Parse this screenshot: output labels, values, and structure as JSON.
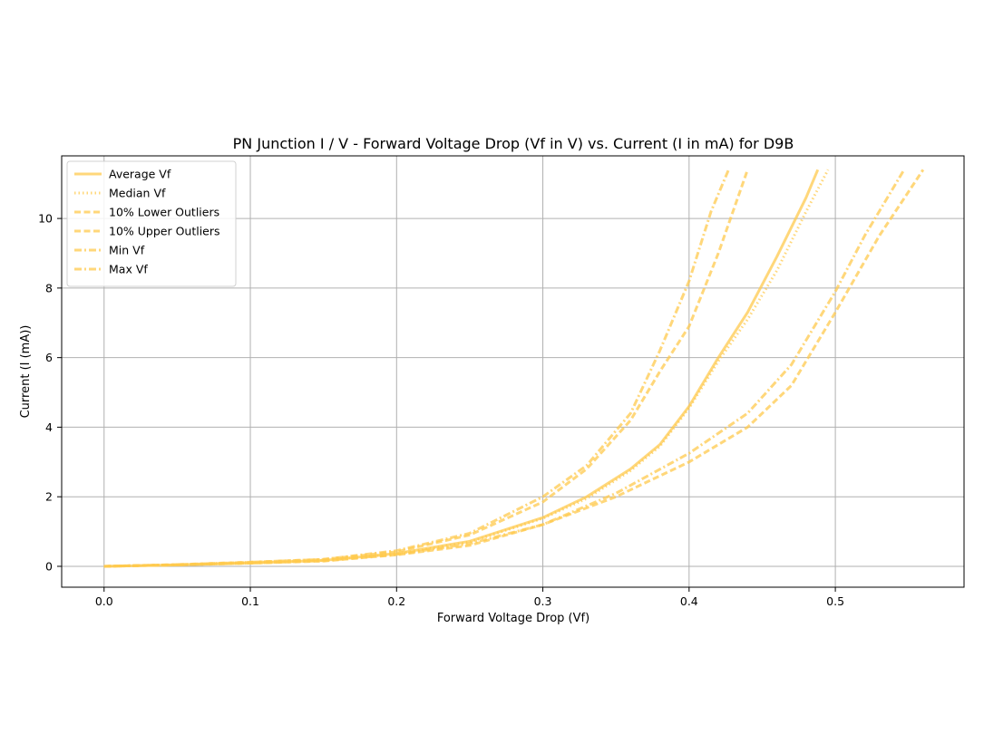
{
  "chart_data": {
    "type": "line",
    "title": "PN Junction I / V - Forward Voltage Drop (Vf in V) vs. Current (I in mA) for D9B",
    "xlabel": "Forward Voltage Drop (Vf)",
    "ylabel": "Current (I (mA))",
    "xlim": [
      -0.029,
      0.588
    ],
    "ylim": [
      -0.6,
      11.8
    ],
    "xticks": [
      0.0,
      0.1,
      0.2,
      0.3,
      0.4,
      0.5
    ],
    "xtick_labels": [
      "0.0",
      "0.1",
      "0.2",
      "0.3",
      "0.4",
      "0.5"
    ],
    "yticks": [
      0,
      2,
      4,
      6,
      8,
      10
    ],
    "ytick_labels": [
      "0",
      "2",
      "4",
      "6",
      "8",
      "10"
    ],
    "grid": true,
    "legend_position": "top-left",
    "line_color": "#ffc94d",
    "series": [
      {
        "name": "Average Vf",
        "style": "solid",
        "points": [
          [
            0.0,
            0
          ],
          [
            0.05,
            0.04
          ],
          [
            0.1,
            0.1
          ],
          [
            0.15,
            0.17
          ],
          [
            0.2,
            0.37
          ],
          [
            0.25,
            0.72
          ],
          [
            0.3,
            1.4
          ],
          [
            0.33,
            2.0
          ],
          [
            0.36,
            2.8
          ],
          [
            0.38,
            3.5
          ],
          [
            0.4,
            4.6
          ],
          [
            0.42,
            6.0
          ],
          [
            0.44,
            7.3
          ],
          [
            0.46,
            8.9
          ],
          [
            0.48,
            10.6
          ],
          [
            0.488,
            11.4
          ]
        ]
      },
      {
        "name": "Median Vf",
        "style": "dotted",
        "points": [
          [
            0.0,
            0
          ],
          [
            0.05,
            0.04
          ],
          [
            0.1,
            0.1
          ],
          [
            0.15,
            0.17
          ],
          [
            0.2,
            0.36
          ],
          [
            0.25,
            0.7
          ],
          [
            0.3,
            1.38
          ],
          [
            0.33,
            1.95
          ],
          [
            0.36,
            2.75
          ],
          [
            0.38,
            3.45
          ],
          [
            0.4,
            4.55
          ],
          [
            0.42,
            5.9
          ],
          [
            0.44,
            7.1
          ],
          [
            0.46,
            8.5
          ],
          [
            0.48,
            10.2
          ],
          [
            0.495,
            11.4
          ]
        ]
      },
      {
        "name": "10% Lower Outliers",
        "style": "dashed",
        "points": [
          [
            0.0,
            0
          ],
          [
            0.05,
            0.05
          ],
          [
            0.1,
            0.12
          ],
          [
            0.15,
            0.2
          ],
          [
            0.2,
            0.42
          ],
          [
            0.25,
            0.9
          ],
          [
            0.3,
            1.85
          ],
          [
            0.33,
            2.8
          ],
          [
            0.36,
            4.2
          ],
          [
            0.38,
            5.6
          ],
          [
            0.4,
            6.9
          ],
          [
            0.42,
            9.0
          ],
          [
            0.44,
            11.4
          ]
        ]
      },
      {
        "name": "10% Upper Outliers",
        "style": "dashed",
        "points": [
          [
            0.0,
            0
          ],
          [
            0.05,
            0.04
          ],
          [
            0.1,
            0.09
          ],
          [
            0.15,
            0.15
          ],
          [
            0.2,
            0.33
          ],
          [
            0.25,
            0.6
          ],
          [
            0.3,
            1.2
          ],
          [
            0.35,
            2.0
          ],
          [
            0.4,
            3.0
          ],
          [
            0.44,
            4.0
          ],
          [
            0.47,
            5.2
          ],
          [
            0.5,
            7.3
          ],
          [
            0.53,
            9.5
          ],
          [
            0.56,
            11.4
          ]
        ]
      },
      {
        "name": "Min Vf",
        "style": "dashdot",
        "points": [
          [
            0.0,
            0
          ],
          [
            0.05,
            0.05
          ],
          [
            0.1,
            0.12
          ],
          [
            0.15,
            0.2
          ],
          [
            0.2,
            0.45
          ],
          [
            0.25,
            0.95
          ],
          [
            0.3,
            2.0
          ],
          [
            0.33,
            2.9
          ],
          [
            0.36,
            4.4
          ],
          [
            0.38,
            6.2
          ],
          [
            0.4,
            8.2
          ],
          [
            0.415,
            10.2
          ],
          [
            0.427,
            11.4
          ]
        ]
      },
      {
        "name": "Max Vf",
        "style": "dashdot",
        "points": [
          [
            0.0,
            0
          ],
          [
            0.05,
            0.04
          ],
          [
            0.1,
            0.09
          ],
          [
            0.15,
            0.16
          ],
          [
            0.2,
            0.34
          ],
          [
            0.25,
            0.65
          ],
          [
            0.3,
            1.2
          ],
          [
            0.35,
            2.1
          ],
          [
            0.4,
            3.25
          ],
          [
            0.44,
            4.4
          ],
          [
            0.47,
            5.8
          ],
          [
            0.5,
            7.9
          ],
          [
            0.52,
            9.5
          ],
          [
            0.547,
            11.4
          ]
        ]
      }
    ]
  }
}
